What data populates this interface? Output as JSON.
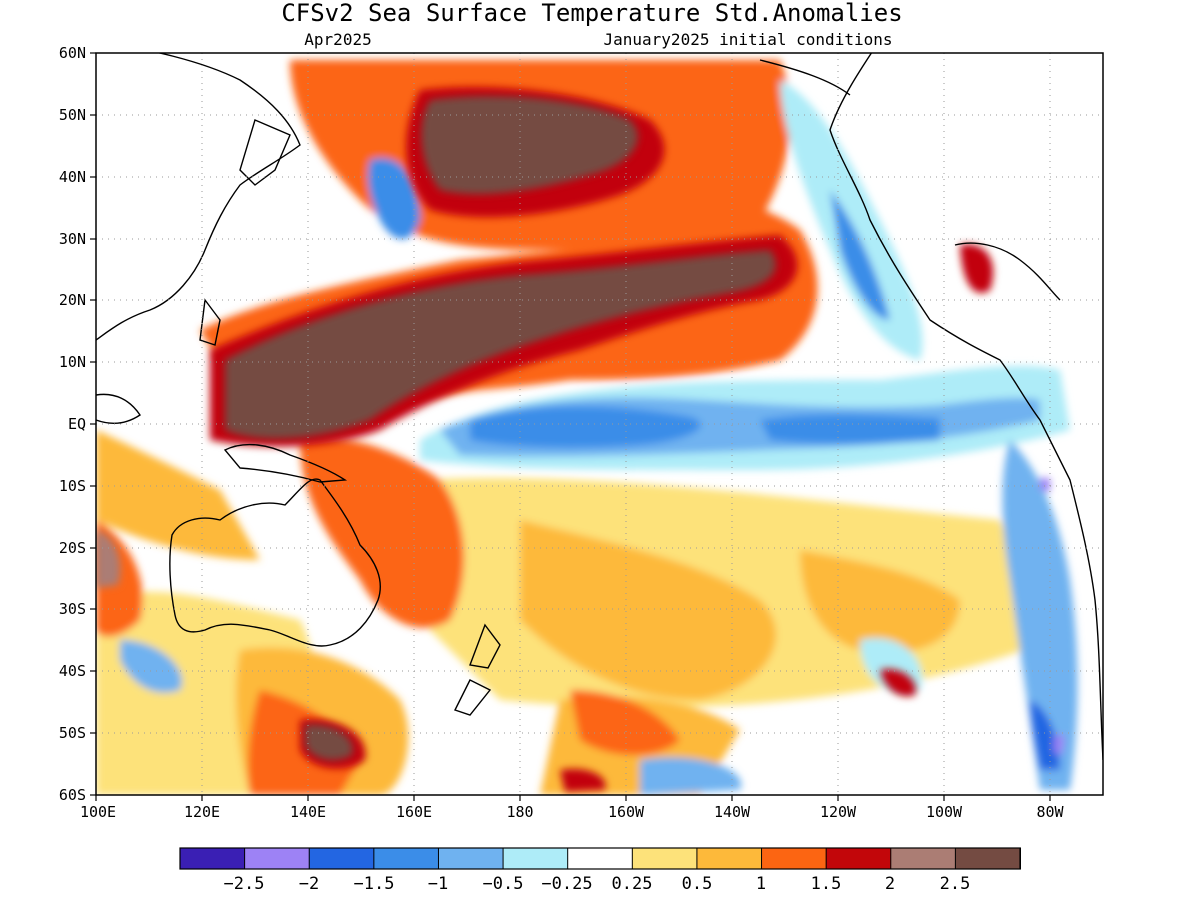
{
  "title": "CFSv2 Sea Surface Temperature Std.Anomalies",
  "subtitle_left": "Apr2025",
  "subtitle_right": "January2025 initial conditions",
  "map": {
    "lat_labels": [
      "60N",
      "50N",
      "40N",
      "30N",
      "20N",
      "10N",
      "EQ",
      "10S",
      "20S",
      "30S",
      "40S",
      "50S",
      "60S"
    ],
    "lon_labels": [
      "100E",
      "120E",
      "140E",
      "160E",
      "180",
      "160W",
      "140W",
      "120W",
      "100W",
      "80W"
    ],
    "lat_range": [
      -60,
      60
    ],
    "lon_range": [
      100,
      290
    ],
    "gridlines": "dotted",
    "regions": [
      {
        "name": "kuroshio-extension-pool",
        "level": 2.5
      },
      {
        "name": "subtropical-north-pacific-band",
        "level": 2.5
      },
      {
        "name": "equatorial-pacific-cold-tongue",
        "level": -1
      },
      {
        "name": "eastern-pacific-cold-band",
        "level": -0.5
      },
      {
        "name": "south-pacific-warm",
        "level": 1
      },
      {
        "name": "peru-coast-cold",
        "level": -1.5
      }
    ]
  },
  "colorbar": {
    "colors": [
      "#3a1fb4",
      "#9d82f5",
      "#2366e2",
      "#3b8de8",
      "#6fb2f0",
      "#aeecf8",
      "#ffffff",
      "#fde27a",
      "#fdb93a",
      "#fc6512",
      "#c2060a",
      "#ab7d74",
      "#744b42"
    ],
    "labels": [
      "−2.5",
      "−2",
      "−1.5",
      "−1",
      "−0.5",
      "−0.25",
      "0.25",
      "0.5",
      "1",
      "1.5",
      "2",
      "2.5"
    ]
  }
}
